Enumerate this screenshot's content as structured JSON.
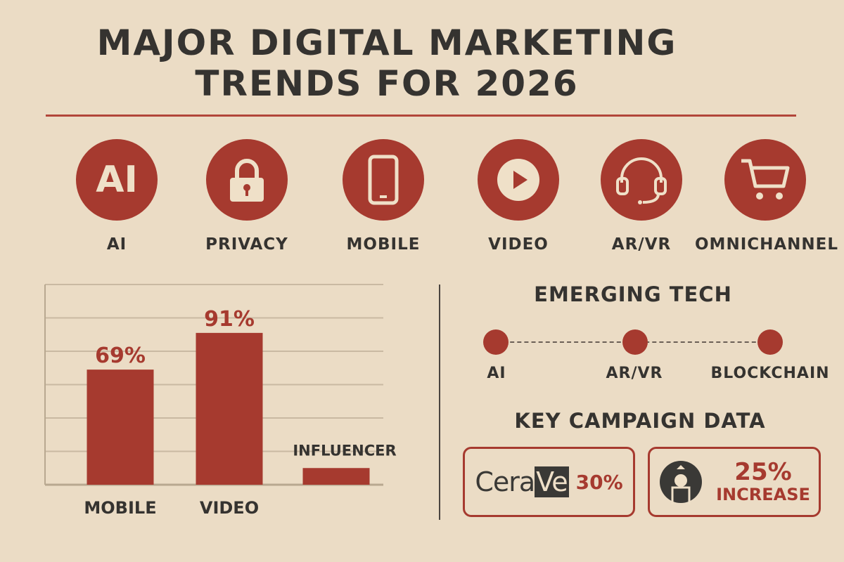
{
  "title": {
    "line1": "MAJOR DIGITAL MARKETING",
    "line2": "TRENDS FOR 2026"
  },
  "colors": {
    "accent": "#a63a2f",
    "background": "#ebdcc5",
    "text": "#353330"
  },
  "trends": [
    {
      "label": "AI",
      "icon": "ai-text-icon",
      "icon_text": "AI"
    },
    {
      "label": "PRIVACY",
      "icon": "padlock-icon"
    },
    {
      "label": "MOBILE",
      "icon": "smartphone-icon"
    },
    {
      "label": "VIDEO",
      "icon": "play-icon"
    },
    {
      "label": "AR/VR",
      "icon": "headset-icon"
    },
    {
      "label": "OMNICHANNEL",
      "icon": "shopping-cart-icon"
    }
  ],
  "chart_data": {
    "type": "bar",
    "categories": [
      "MOBILE",
      "VIDEO",
      "INFLUENCER"
    ],
    "values": [
      69,
      91,
      10
    ],
    "data_labels": [
      "69%",
      "91%",
      ""
    ],
    "ylim": [
      0,
      120
    ],
    "grid": true,
    "xlabel": "",
    "ylabel": "",
    "title": ""
  },
  "emerging": {
    "title": "EMERGING TECH",
    "items": [
      "AI",
      "AR/VR",
      "BLOCKCHAIN"
    ]
  },
  "campaign": {
    "title": "KEY CAMPAIGN DATA",
    "cerave": {
      "logo_text": "CeraVe",
      "value": "30%"
    },
    "starbucks": {
      "value": "25%",
      "label": "INCREASE"
    }
  }
}
